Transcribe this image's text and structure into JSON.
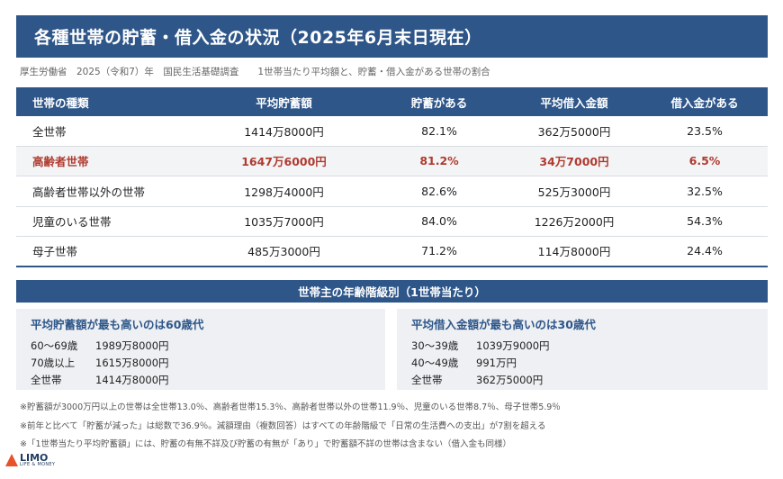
{
  "title": "各種世帯の貯蓄・借入金の状況（2025年6月末日現在）",
  "source": "厚生労働省　2025（令和7）年　国民生活基礎調査　　1世帯当たり平均額と、貯蓄・借入金がある世帯の割合",
  "table": {
    "headers": [
      "世帯の種類",
      "平均貯蓄額",
      "貯蓄がある",
      "平均借入金額",
      "借入金がある"
    ],
    "rows": [
      {
        "type": "全世帯",
        "savings": "1414万8000円",
        "has_savings": "82.1%",
        "debt": "362万5000円",
        "has_debt": "23.5%"
      },
      {
        "type": "高齢者世帯",
        "savings": "1647万6000円",
        "has_savings": "81.2%",
        "debt": "34万7000円",
        "has_debt": "6.5%"
      },
      {
        "type": "高齢者世帯以外の世帯",
        "savings": "1298万4000円",
        "has_savings": "82.6%",
        "debt": "525万3000円",
        "has_debt": "32.5%"
      },
      {
        "type": "児童のいる世帯",
        "savings": "1035万7000円",
        "has_savings": "84.0%",
        "debt": "1226万2000円",
        "has_debt": "54.3%"
      },
      {
        "type": "母子世帯",
        "savings": "485万3000円",
        "has_savings": "71.2%",
        "debt": "114万8000円",
        "has_debt": "24.4%"
      }
    ]
  },
  "age_section": {
    "title": "世帯主の年齢階級別（1世帯当たり）",
    "savings_panel": {
      "title": "平均貯蓄額が最も高いのは60歳代",
      "rows": [
        {
          "label": "60～69歳",
          "value": "1989万8000円"
        },
        {
          "label": "70歳以上",
          "value": "1615万8000円"
        },
        {
          "label": "全世帯",
          "value": "1414万8000円"
        }
      ]
    },
    "debt_panel": {
      "title": "平均借入金額が最も高いのは30歳代",
      "rows": [
        {
          "label": "30～39歳",
          "value": "1039万9000円"
        },
        {
          "label": "40～49歳",
          "value": "991万円"
        },
        {
          "label": "全世帯",
          "value": "362万5000円"
        }
      ]
    }
  },
  "notes": [
    "※貯蓄額が3000万円以上の世帯は全世帯13.0％、高齢者世帯15.3％、高齢者世帯以外の世帯11.9％、児童のいる世帯8.7％、母子世帯5.9％",
    "※前年と比べて「貯蓄が減った」は総数で36.9％。減額理由（複数回答）はすべての年齢階級で「日常の生活費への支出」が7割を超える",
    "※「1世帯当たり平均貯蓄額」には、貯蓄の有無不詳及び貯蓄の有無が「あり」で貯蓄額不詳の世帯は含まない（借入金も同様）"
  ],
  "logo": {
    "name": "LIMO",
    "tagline": "LIFE & MONEY",
    "icon": "limo-logo-icon"
  },
  "colors": {
    "primary": "#2e5689",
    "highlight_text": "#b03a2e",
    "panel_bg": "#eef0f3",
    "logo_accent": "#e8522a"
  }
}
